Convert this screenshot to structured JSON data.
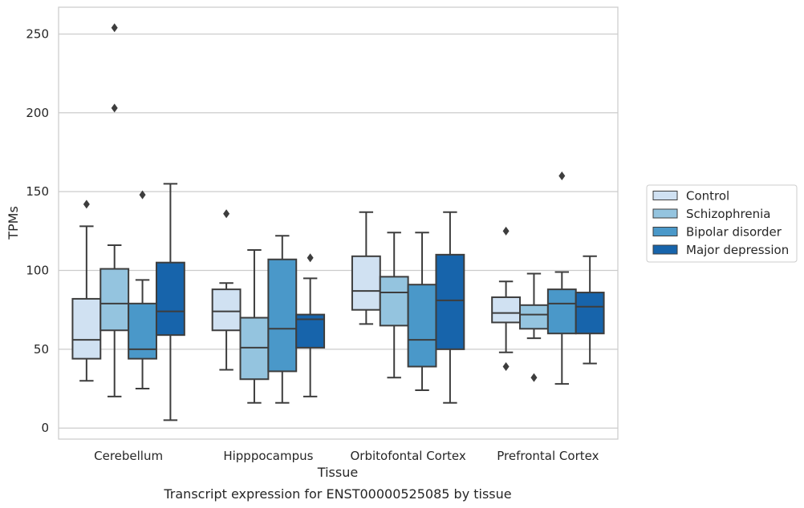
{
  "chart_data": {
    "type": "box",
    "title": "",
    "caption": "Transcript expression for ENST00000525085 by tissue",
    "xlabel": "Tissue",
    "ylabel": "TPMs",
    "ylim": [
      -7,
      267
    ],
    "yticks": [
      0,
      50,
      100,
      150,
      200,
      250
    ],
    "grid": "horizontal",
    "legend_position": "right",
    "categories": [
      "Cerebellum",
      "Hipppocampus",
      "Orbitofontal Cortex",
      "Prefrontal Cortex"
    ],
    "series": [
      {
        "name": "Control",
        "color": "#d0e1f2",
        "boxes": [
          {
            "whisker_low": 30,
            "q1": 44,
            "median": 56,
            "q3": 82,
            "whisker_high": 128,
            "outliers": [
              142
            ]
          },
          {
            "whisker_low": 37,
            "q1": 62,
            "median": 74,
            "q3": 88,
            "whisker_high": 92,
            "outliers": [
              136
            ]
          },
          {
            "whisker_low": 66,
            "q1": 75,
            "median": 87,
            "q3": 109,
            "whisker_high": 137,
            "outliers": []
          },
          {
            "whisker_low": 48,
            "q1": 67,
            "median": 73,
            "q3": 83,
            "whisker_high": 93,
            "outliers": [
              125,
              39
            ]
          }
        ]
      },
      {
        "name": "Schizophrenia",
        "color": "#94c4df",
        "boxes": [
          {
            "whisker_low": 20,
            "q1": 62,
            "median": 79,
            "q3": 101,
            "whisker_high": 116,
            "outliers": [
              254,
              203
            ]
          },
          {
            "whisker_low": 16,
            "q1": 31,
            "median": 51,
            "q3": 70,
            "whisker_high": 113,
            "outliers": []
          },
          {
            "whisker_low": 32,
            "q1": 65,
            "median": 86,
            "q3": 96,
            "whisker_high": 124,
            "outliers": []
          },
          {
            "whisker_low": 57,
            "q1": 63,
            "median": 72,
            "q3": 78,
            "whisker_high": 98,
            "outliers": [
              32
            ]
          }
        ]
      },
      {
        "name": "Bipolar disorder",
        "color": "#4a98c9",
        "boxes": [
          {
            "whisker_low": 25,
            "q1": 44,
            "median": 50,
            "q3": 79,
            "whisker_high": 94,
            "outliers": [
              148
            ]
          },
          {
            "whisker_low": 16,
            "q1": 36,
            "median": 63,
            "q3": 107,
            "whisker_high": 122,
            "outliers": []
          },
          {
            "whisker_low": 24,
            "q1": 39,
            "median": 56,
            "q3": 91,
            "whisker_high": 124,
            "outliers": []
          },
          {
            "whisker_low": 28,
            "q1": 60,
            "median": 79,
            "q3": 88,
            "whisker_high": 99,
            "outliers": [
              160
            ]
          }
        ]
      },
      {
        "name": "Major depression",
        "color": "#1764ab",
        "boxes": [
          {
            "whisker_low": 5,
            "q1": 59,
            "median": 74,
            "q3": 105,
            "whisker_high": 155,
            "outliers": []
          },
          {
            "whisker_low": 20,
            "q1": 51,
            "median": 69,
            "q3": 72,
            "whisker_high": 95,
            "outliers": [
              108
            ]
          },
          {
            "whisker_low": 16,
            "q1": 50,
            "median": 81,
            "q3": 110,
            "whisker_high": 137,
            "outliers": []
          },
          {
            "whisker_low": 41,
            "q1": 60,
            "median": 77,
            "q3": 86,
            "whisker_high": 109,
            "outliers": []
          }
        ]
      }
    ]
  }
}
